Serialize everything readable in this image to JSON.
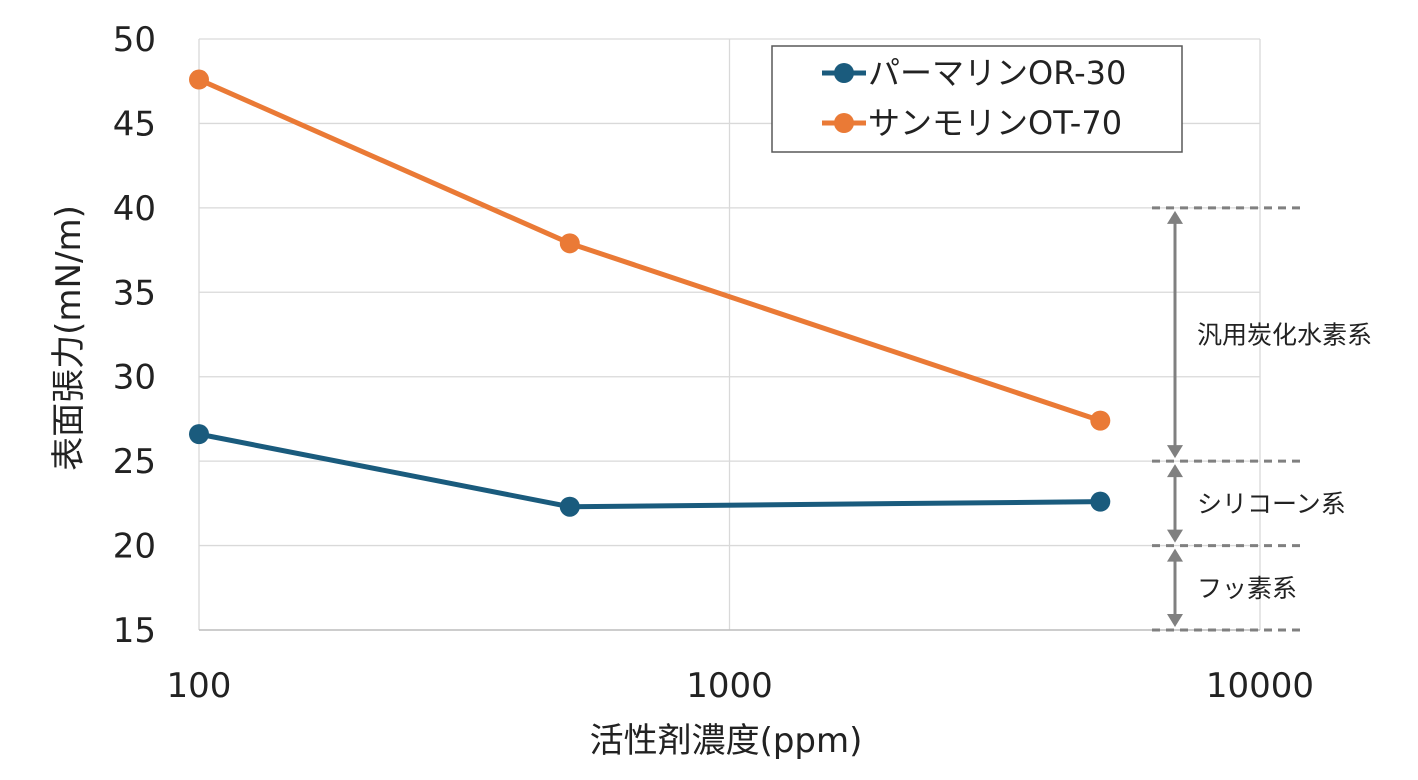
{
  "chart_data": {
    "type": "line",
    "xscale": "log",
    "xlim": [
      100,
      10000
    ],
    "ylim": [
      15,
      50
    ],
    "xticks": [
      "100",
      "1000",
      "10000"
    ],
    "yticks": [
      "15",
      "20",
      "25",
      "30",
      "35",
      "40",
      "45",
      "50"
    ],
    "xlabel": "活性剤濃度(ppm)",
    "ylabel": "表面張力(mN/m)",
    "grid": true,
    "legend_position": "top-right",
    "series": [
      {
        "name": "パーマリンOR-30",
        "color": "#1a5b7d",
        "x": [
          100,
          500,
          5000
        ],
        "y": [
          26.6,
          22.3,
          22.6
        ]
      },
      {
        "name": "サンモリンOT-70",
        "color": "#ea7a36",
        "x": [
          100,
          500,
          5000
        ],
        "y": [
          47.6,
          37.9,
          27.4
        ]
      }
    ],
    "ranges": [
      {
        "label": "汎用炭化水素系",
        "from": 25,
        "to": 40
      },
      {
        "label": "シリコーン系",
        "from": 20,
        "to": 25
      },
      {
        "label": "フッ素系",
        "from": 15,
        "to": 20
      }
    ],
    "range_color": "#808080"
  }
}
